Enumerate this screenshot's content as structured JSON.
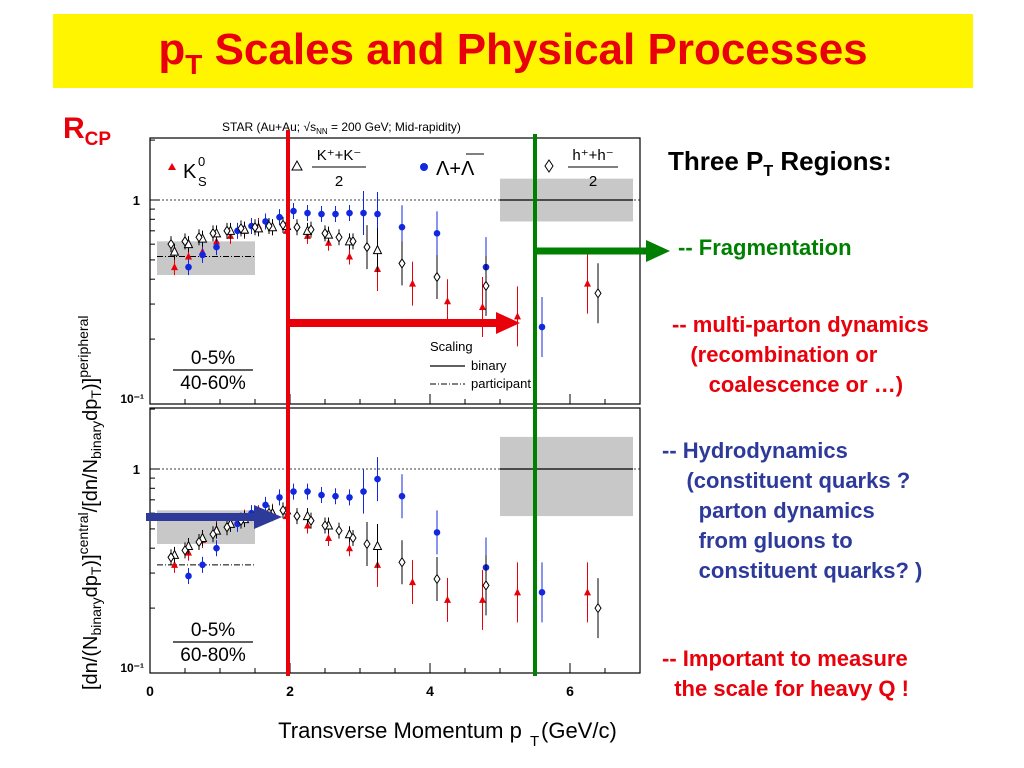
{
  "title": {
    "main": "p",
    "sub": "T",
    "rest": " Scales and Physical Processes"
  },
  "rcp_label": {
    "main": "R",
    "sub": "CP"
  },
  "header_text": "STAR (Au+Au; √s   = 200 GeV; Mid-rapidity)",
  "header_parts": {
    "a": "STAR (Au+Au; ",
    "sqrt": "√",
    "s": "s",
    "nn": "NN",
    "b": " = 200 GeV; Mid-rapidity)"
  },
  "legend": {
    "k0s": "K",
    "k0s_sup": "0",
    "k0s_sub": "S",
    "kpm_num": "K⁺+K⁻",
    "kpm_den": "2",
    "lambda": "Λ+Λ",
    "hpm_num": "h⁺+h⁻",
    "hpm_den": "2"
  },
  "scaling_legend": {
    "title": "Scaling",
    "binary": "binary",
    "participant": "participant"
  },
  "panels": [
    {
      "centrality_num": "0-5%",
      "centrality_den": "40-60%"
    },
    {
      "centrality_num": "0-5%",
      "centrality_den": "60-80%"
    }
  ],
  "y_axis_label": "[dn/(N_binary dp_T)]^central / [dn/N_binary dp_T)]^peripheral",
  "x_axis_label": "Transverse Momentum p_T (GeV/c)",
  "regions": {
    "heading_main": "Three P",
    "heading_sub": "T",
    "heading_rest": " Regions:",
    "fragmentation": "-- Fragmentation",
    "multiparton": "-- multi-parton dynamics\n   (recombination or\n      coalescence or …)",
    "hydro": "-- Hydrodynamics\n    (constituent quarks ?\n      parton dynamics\n      from gluons to\n      constituent quarks? )",
    "heavy": "-- Important to measure\n  the scale for heavy Q !"
  },
  "colors": {
    "title_bg": "#fff500",
    "title_fg": "#e8000a",
    "k0s": "#e8000a",
    "lambda": "#1228e0",
    "kpm": "#000000",
    "hpm": "#000000",
    "red_line": "#e8000a",
    "green_line": "#008000",
    "blue_arrow": "#2e3a9a",
    "fragmentation": "#008000",
    "multiparton": "#e8000a",
    "hydro": "#2e3a9a",
    "heavy": "#e8000a"
  },
  "chart_data": [
    {
      "type": "scatter",
      "panel": "0-5% / 40-60%",
      "xlabel": "Transverse Momentum p_T (GeV/c)",
      "ylabel": "R_CP",
      "xlim": [
        0,
        7
      ],
      "ylim": [
        0.1,
        2.0
      ],
      "yscale": "log",
      "x_ticks": [
        "0",
        "2",
        "4",
        "6"
      ],
      "y_ticks": [
        "10⁻¹",
        "1"
      ],
      "series": [
        {
          "name": "K0S",
          "x": [
            0.35,
            0.55,
            0.75,
            0.95,
            1.15,
            1.35,
            1.55,
            1.75,
            1.95,
            2.25,
            2.55,
            2.85,
            3.25,
            3.75,
            4.25,
            4.75,
            5.25,
            6.25
          ],
          "y": [
            0.46,
            0.52,
            0.55,
            0.62,
            0.66,
            0.7,
            0.74,
            0.73,
            0.7,
            0.66,
            0.61,
            0.52,
            0.45,
            0.38,
            0.31,
            0.29,
            0.26,
            0.38
          ]
        },
        {
          "name": "Lambda",
          "x": [
            0.55,
            0.75,
            0.95,
            1.25,
            1.45,
            1.65,
            1.85,
            2.05,
            2.25,
            2.45,
            2.65,
            2.85,
            3.05,
            3.25,
            3.6,
            4.1,
            4.8,
            5.6
          ],
          "y": [
            0.46,
            0.53,
            0.58,
            0.7,
            0.74,
            0.78,
            0.82,
            0.88,
            0.86,
            0.85,
            0.85,
            0.86,
            0.86,
            0.85,
            0.73,
            0.68,
            0.46,
            0.23
          ]
        },
        {
          "name": "K±",
          "x": [
            0.35,
            0.55,
            0.75,
            0.95,
            1.15,
            1.35,
            1.55,
            1.75,
            1.95,
            2.25,
            2.55,
            2.85,
            3.25
          ],
          "y": [
            0.55,
            0.6,
            0.64,
            0.68,
            0.7,
            0.71,
            0.72,
            0.73,
            0.74,
            0.7,
            0.67,
            0.62,
            0.56
          ]
        },
        {
          "name": "h±",
          "x": [
            0.3,
            0.5,
            0.7,
            0.9,
            1.1,
            1.3,
            1.5,
            1.7,
            1.9,
            2.1,
            2.3,
            2.5,
            2.7,
            2.9,
            3.1,
            3.6,
            4.1,
            4.8,
            6.4
          ],
          "y": [
            0.6,
            0.62,
            0.65,
            0.68,
            0.7,
            0.72,
            0.73,
            0.74,
            0.75,
            0.73,
            0.71,
            0.68,
            0.65,
            0.62,
            0.58,
            0.48,
            0.41,
            0.37,
            0.34
          ]
        }
      ]
    },
    {
      "type": "scatter",
      "panel": "0-5% / 60-80%",
      "xlabel": "Transverse Momentum p_T (GeV/c)",
      "ylabel": "R_CP",
      "xlim": [
        0,
        7
      ],
      "ylim": [
        0.1,
        2.0
      ],
      "yscale": "log",
      "x_ticks": [
        "0",
        "2",
        "4",
        "6"
      ],
      "y_ticks": [
        "10⁻¹",
        "1"
      ],
      "series": [
        {
          "name": "K0S",
          "x": [
            0.35,
            0.55,
            0.75,
            0.95,
            1.15,
            1.35,
            1.55,
            1.75,
            1.95,
            2.25,
            2.55,
            2.85,
            3.25,
            3.75,
            4.25,
            4.75,
            5.25,
            6.25
          ],
          "y": [
            0.33,
            0.38,
            0.44,
            0.5,
            0.54,
            0.57,
            0.6,
            0.61,
            0.58,
            0.52,
            0.45,
            0.4,
            0.33,
            0.27,
            0.22,
            0.22,
            0.24,
            0.24
          ]
        },
        {
          "name": "Lambda",
          "x": [
            0.55,
            0.75,
            0.95,
            1.25,
            1.45,
            1.65,
            1.85,
            2.05,
            2.25,
            2.45,
            2.65,
            2.85,
            3.05,
            3.25,
            3.6,
            4.1,
            4.8,
            5.6
          ],
          "y": [
            0.29,
            0.33,
            0.4,
            0.53,
            0.6,
            0.66,
            0.72,
            0.77,
            0.77,
            0.74,
            0.73,
            0.72,
            0.77,
            0.89,
            0.73,
            0.48,
            0.32,
            0.24
          ]
        },
        {
          "name": "K±",
          "x": [
            0.35,
            0.55,
            0.75,
            0.95,
            1.15,
            1.35,
            1.55,
            1.75,
            1.95,
            2.25,
            2.55,
            2.85,
            3.25
          ],
          "y": [
            0.37,
            0.41,
            0.45,
            0.49,
            0.53,
            0.56,
            0.58,
            0.6,
            0.62,
            0.58,
            0.52,
            0.47,
            0.41
          ]
        },
        {
          "name": "h±",
          "x": [
            0.3,
            0.5,
            0.7,
            0.9,
            1.1,
            1.3,
            1.5,
            1.7,
            1.9,
            2.1,
            2.3,
            2.5,
            2.7,
            2.9,
            3.1,
            3.6,
            4.1,
            4.8,
            6.4
          ],
          "y": [
            0.36,
            0.39,
            0.43,
            0.47,
            0.51,
            0.55,
            0.58,
            0.6,
            0.62,
            0.58,
            0.55,
            0.52,
            0.49,
            0.45,
            0.42,
            0.34,
            0.28,
            0.26,
            0.2
          ]
        }
      ]
    }
  ]
}
